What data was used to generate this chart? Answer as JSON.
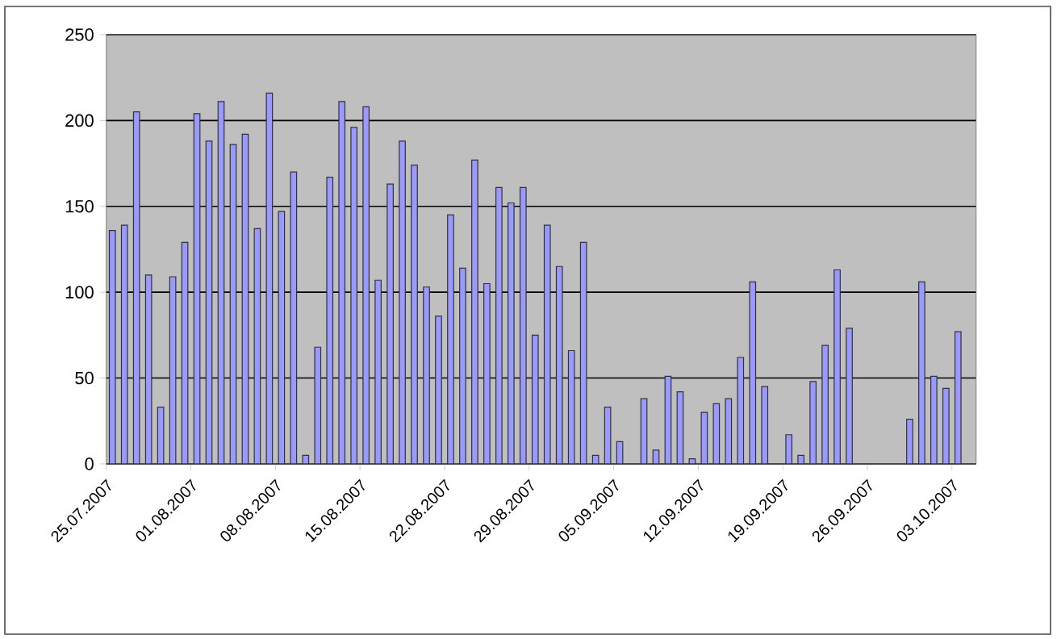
{
  "chart_data": {
    "type": "bar",
    "color": "#9999ff",
    "grid": "y",
    "x": [
      "2007-07-25T12:00",
      "2007-07-26T12:00",
      "2007-07-27T12:00",
      "2007-07-28T12:00",
      "2007-07-29T12:00",
      "2007-07-30T12:00",
      "2007-07-31T12:00",
      "2007-08-01T12:00",
      "2007-08-02T12:00",
      "2007-08-03T12:00",
      "2007-08-04T12:00",
      "2007-08-05T12:00",
      "2007-08-06T12:00",
      "2007-08-07T12:00",
      "2007-08-08T12:00",
      "2007-08-09T12:00",
      "2007-08-10T12:00",
      "2007-08-11T12:00",
      "2007-08-12T12:00",
      "2007-08-13T12:00",
      "2007-08-14T12:00",
      "2007-08-15T12:00",
      "2007-08-16T12:00",
      "2007-08-17T12:00",
      "2007-08-18T12:00",
      "2007-08-19T12:00",
      "2007-08-20T12:00",
      "2007-08-21T12:00",
      "2007-08-22T12:00",
      "2007-08-23T12:00",
      "2007-08-24T12:00",
      "2007-08-25T12:00",
      "2007-08-26T12:00",
      "2007-08-27T12:00",
      "2007-08-28T12:00",
      "2007-08-29T12:00",
      "2007-08-30T12:00",
      "2007-08-31T12:00",
      "2007-09-01T12:00",
      "2007-09-02T12:00",
      "2007-09-03T12:00",
      "2007-09-04T12:00",
      "2007-09-05T12:00",
      "2007-09-06T12:00",
      "2007-09-07T12:00",
      "2007-09-08T12:00",
      "2007-09-09T12:00",
      "2007-09-10T12:00",
      "2007-09-11T12:00",
      "2007-09-12T12:00",
      "2007-09-13T12:00",
      "2007-09-14T12:00",
      "2007-09-15T12:00",
      "2007-09-16T12:00",
      "2007-09-17T12:00",
      "2007-09-18T12:00",
      "2007-09-19T12:00",
      "2007-09-20T12:00",
      "2007-09-21T12:00",
      "2007-09-22T12:00",
      "2007-09-23T12:00",
      "2007-09-24T12:00",
      "2007-09-25T12:00",
      "2007-09-26T12:00",
      "2007-09-27T12:00",
      "2007-09-28T12:00",
      "2007-09-29T12:00",
      "2007-09-30T12:00",
      "2007-10-01T12:00",
      "2007-10-02T12:00",
      "2007-10-03T12:00"
    ],
    "values": [
      136,
      139,
      205,
      110,
      33,
      109,
      129,
      204,
      188,
      211,
      186,
      192,
      137,
      216,
      147,
      170,
      5,
      68,
      167,
      211,
      196,
      208,
      107,
      163,
      188,
      174,
      103,
      86,
      145,
      114,
      177,
      105,
      161,
      152,
      161,
      75,
      139,
      115,
      66,
      129,
      5,
      33,
      13,
      null,
      38,
      8,
      51,
      42,
      3,
      30,
      35,
      38,
      62,
      106,
      45,
      null,
      17,
      5,
      48,
      69,
      113,
      79,
      null,
      null,
      null,
      null,
      26,
      106,
      51,
      44,
      77
    ],
    "xlim": [
      "2007-07-25",
      "2007-10-05"
    ],
    "xticks": [
      {
        "value": "2007-07-25",
        "label": "25.07.2007"
      },
      {
        "value": "2007-08-01",
        "label": "01.08.2007"
      },
      {
        "value": "2007-08-08",
        "label": "08.08.2007"
      },
      {
        "value": "2007-08-15",
        "label": "15.08.2007"
      },
      {
        "value": "2007-08-22",
        "label": "22.08.2007"
      },
      {
        "value": "2007-08-29",
        "label": "29.08.2007"
      },
      {
        "value": "2007-09-05",
        "label": "05.09.2007"
      },
      {
        "value": "2007-09-12",
        "label": "12.09.2007"
      },
      {
        "value": "2007-09-19",
        "label": "19.09.2007"
      },
      {
        "value": "2007-09-26",
        "label": "26.09.2007"
      },
      {
        "value": "2007-10-03",
        "label": "03.10.2007"
      }
    ],
    "ylim": [
      0,
      250
    ],
    "yticks": [
      0,
      50,
      100,
      150,
      200,
      250
    ]
  }
}
